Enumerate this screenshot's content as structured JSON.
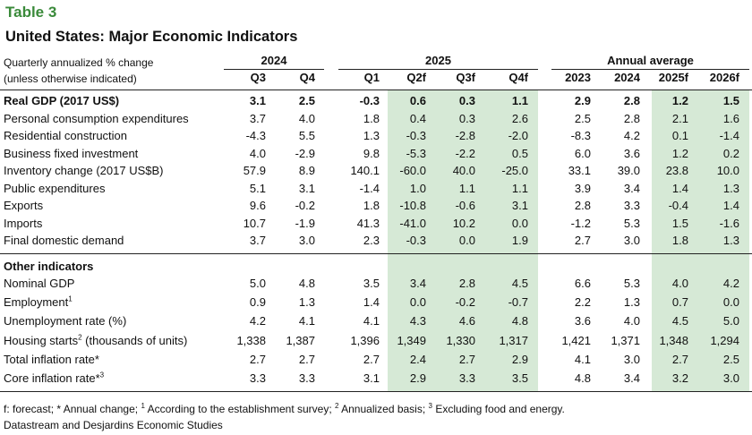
{
  "title": "Table 3",
  "subtitle": "United States: Major Economic Indicators",
  "header_note_1": "Quarterly annualized % change",
  "header_note_2": "(unless otherwise indicated)",
  "groups": [
    "2024",
    "2025",
    "Annual average"
  ],
  "columns": [
    "Q3",
    "Q4",
    "Q1",
    "Q2f",
    "Q3f",
    "Q4f",
    "2023",
    "2024",
    "2025f",
    "2026f"
  ],
  "shade_color": "#d6e9d6",
  "accent_color": "#3a8a3a",
  "section_2_title": "Other indicators",
  "rows": [
    {
      "label": "Real GDP (2017 US$)",
      "sup": "",
      "label_tail": "",
      "bold": true,
      "values": [
        "3.1",
        "2.5",
        "-0.3",
        "0.6",
        "0.3",
        "1.1",
        "2.9",
        "2.8",
        "1.2",
        "1.5"
      ]
    },
    {
      "label": "Personal consumption expenditures",
      "sup": "",
      "label_tail": "",
      "values": [
        "3.7",
        "4.0",
        "1.8",
        "0.4",
        "0.3",
        "2.6",
        "2.5",
        "2.8",
        "2.1",
        "1.6"
      ]
    },
    {
      "label": "Residential construction",
      "sup": "",
      "label_tail": "",
      "values": [
        "-4.3",
        "5.5",
        "1.3",
        "-0.3",
        "-2.8",
        "-2.0",
        "-8.3",
        "4.2",
        "0.1",
        "-1.4"
      ]
    },
    {
      "label": "Business fixed investment",
      "sup": "",
      "label_tail": "",
      "values": [
        "4.0",
        "-2.9",
        "9.8",
        "-5.3",
        "-2.2",
        "0.5",
        "6.0",
        "3.6",
        "1.2",
        "0.2"
      ]
    },
    {
      "label": "Inventory change (2017 US$B)",
      "sup": "",
      "label_tail": "",
      "values": [
        "57.9",
        "8.9",
        "140.1",
        "-60.0",
        "40.0",
        "-25.0",
        "33.1",
        "39.0",
        "23.8",
        "10.0"
      ]
    },
    {
      "label": "Public expenditures",
      "sup": "",
      "label_tail": "",
      "values": [
        "5.1",
        "3.1",
        "-1.4",
        "1.0",
        "1.1",
        "1.1",
        "3.9",
        "3.4",
        "1.4",
        "1.3"
      ]
    },
    {
      "label": "Exports",
      "sup": "",
      "label_tail": "",
      "values": [
        "9.6",
        "-0.2",
        "1.8",
        "-10.8",
        "-0.6",
        "3.1",
        "2.8",
        "3.3",
        "-0.4",
        "1.4"
      ]
    },
    {
      "label": "Imports",
      "sup": "",
      "label_tail": "",
      "values": [
        "10.7",
        "-1.9",
        "41.3",
        "-41.0",
        "10.2",
        "0.0",
        "-1.2",
        "5.3",
        "1.5",
        "-1.6"
      ]
    },
    {
      "label": "Final domestic demand",
      "sup": "",
      "label_tail": "",
      "values": [
        "3.7",
        "3.0",
        "2.3",
        "-0.3",
        "0.0",
        "1.9",
        "2.7",
        "3.0",
        "1.8",
        "1.3"
      ]
    },
    {
      "label": "Nominal GDP",
      "sup": "",
      "label_tail": "",
      "values": [
        "5.0",
        "4.8",
        "3.5",
        "3.4",
        "2.8",
        "4.5",
        "6.6",
        "5.3",
        "4.0",
        "4.2"
      ]
    },
    {
      "label": "Employment",
      "sup": "1",
      "label_tail": "",
      "values": [
        "0.9",
        "1.3",
        "1.4",
        "0.0",
        "-0.2",
        "-0.7",
        "2.2",
        "1.3",
        "0.7",
        "0.0"
      ]
    },
    {
      "label": "Unemployment rate (%)",
      "sup": "",
      "label_tail": "",
      "values": [
        "4.2",
        "4.1",
        "4.1",
        "4.3",
        "4.6",
        "4.8",
        "3.6",
        "4.0",
        "4.5",
        "5.0"
      ]
    },
    {
      "label": "Housing starts",
      "sup": "2",
      "label_tail": " (thousands of units)",
      "values": [
        "1,338",
        "1,387",
        "1,396",
        "1,349",
        "1,330",
        "1,317",
        "1,421",
        "1,371",
        "1,348",
        "1,294"
      ]
    },
    {
      "label": "Total inflation rate*",
      "sup": "",
      "label_tail": "",
      "values": [
        "2.7",
        "2.7",
        "2.7",
        "2.4",
        "2.7",
        "2.9",
        "4.1",
        "3.0",
        "2.7",
        "2.5"
      ]
    },
    {
      "label": "Core inflation rate*",
      "sup": "3",
      "label_tail": "",
      "values": [
        "3.3",
        "3.3",
        "3.1",
        "2.9",
        "3.3",
        "3.5",
        "4.8",
        "3.4",
        "3.2",
        "3.0"
      ]
    }
  ],
  "footnote_parts": [
    "f: forecast; * Annual change; ",
    "1",
    " According to the establishment survey; ",
    "2",
    " Annualized basis; ",
    "3",
    " Excluding food and energy."
  ],
  "source": "Datastream and Desjardins Economic Studies"
}
